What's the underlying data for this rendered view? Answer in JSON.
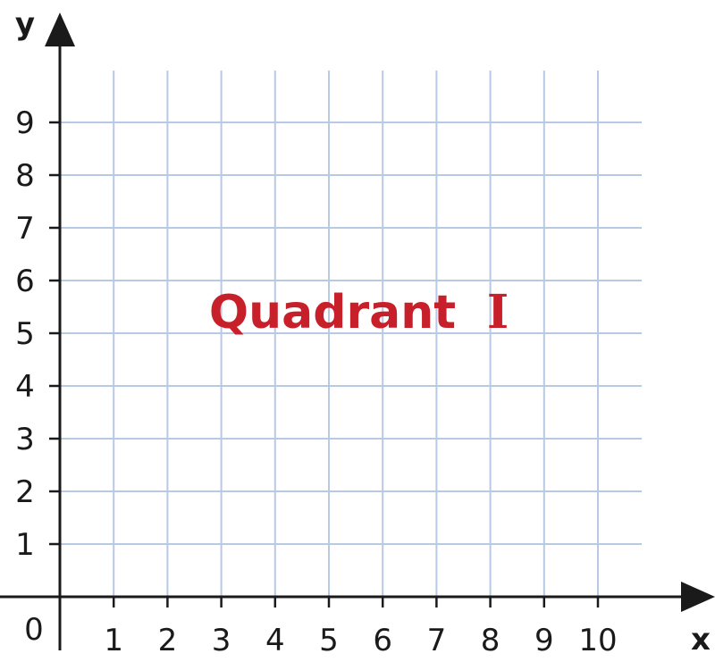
{
  "diagram": {
    "x_axis_label": "x",
    "y_axis_label": "y",
    "origin_label": "0",
    "x_ticks": [
      "1",
      "2",
      "3",
      "4",
      "5",
      "6",
      "7",
      "8",
      "9",
      "10"
    ],
    "y_ticks": [
      "1",
      "2",
      "3",
      "4",
      "5",
      "6",
      "7",
      "8",
      "9"
    ],
    "region_label": {
      "word": "Quadrant",
      "numeral": "I",
      "color": "#c8202a"
    },
    "grid_color": "#b8c9e6",
    "axis_color": "#1a1a1a"
  }
}
